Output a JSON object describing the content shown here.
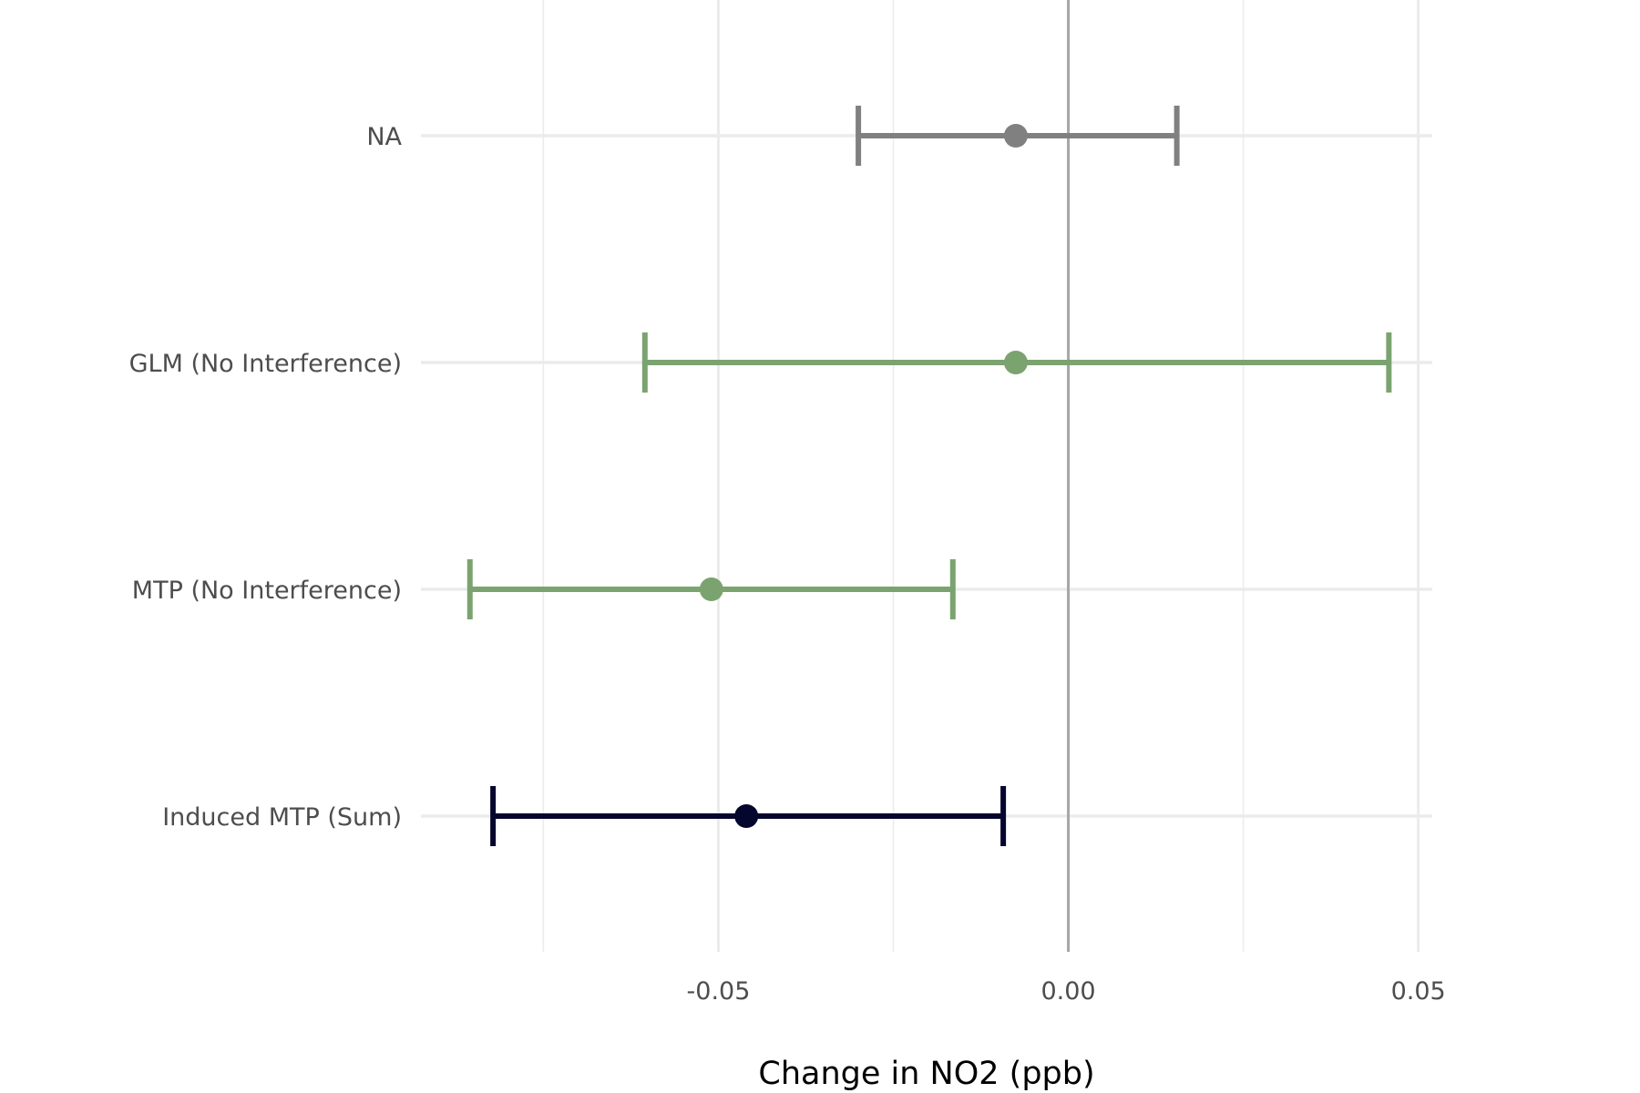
{
  "chart_data": {
    "type": "forest",
    "title": "",
    "xlabel": "Change in NO2 (ppb)",
    "ylabel": "",
    "xlim": [
      -0.0925,
      0.052
    ],
    "x_ticks": [
      -0.05,
      0.0,
      0.05
    ],
    "x_tick_labels": [
      "-0.05",
      "0.00",
      "0.05"
    ],
    "reference_line": 0.0,
    "grid": true,
    "legend": "none",
    "rows": [
      {
        "label": "NA",
        "estimate": -0.0075,
        "lower": -0.03,
        "upper": 0.0155,
        "color": "#808080"
      },
      {
        "label": "GLM (No Interference)",
        "estimate": -0.0075,
        "lower": -0.0605,
        "upper": 0.0458,
        "color": "#7BA370"
      },
      {
        "label": "MTP (No Interference)",
        "estimate": -0.051,
        "lower": -0.0855,
        "upper": -0.0165,
        "color": "#7BA370"
      },
      {
        "label": "Induced MTP (Sum)",
        "estimate": -0.046,
        "lower": -0.0822,
        "upper": -0.0093,
        "color": "#05062E"
      }
    ]
  }
}
